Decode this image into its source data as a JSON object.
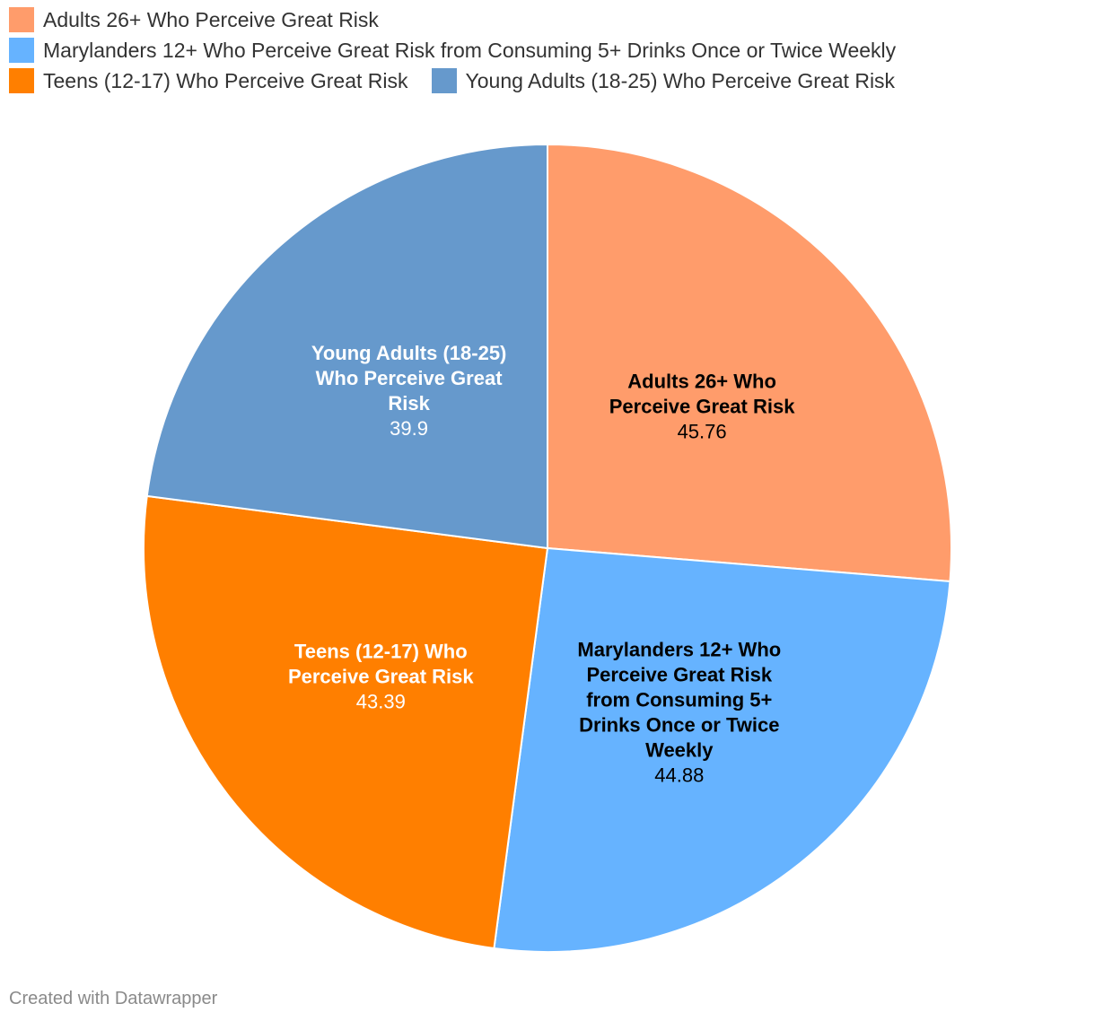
{
  "chart_data": {
    "type": "pie",
    "title": "",
    "legend_position": "top-left",
    "slices": [
      {
        "label": "Adults 26+ Who Perceive Great Risk",
        "value": 45.76,
        "value_label": "45.76",
        "color": "#ff9c6b",
        "text_color": "#000000",
        "label_lines": [
          "Adults 26+ Who",
          "Perceive Great Risk"
        ]
      },
      {
        "label": "Marylanders 12+ Who Perceive Great Risk from Consuming 5+ Drinks Once or Twice Weekly",
        "value": 44.88,
        "value_label": "44.88",
        "color": "#66b3ff",
        "text_color": "#000000",
        "label_lines": [
          "Marylanders 12+ Who",
          "Perceive Great Risk",
          "from Consuming 5+",
          "Drinks Once or Twice",
          "Weekly"
        ]
      },
      {
        "label": "Teens (12-17) Who Perceive Great Risk",
        "value": 43.39,
        "value_label": "43.39",
        "color": "#ff7f00",
        "text_color": "#ffffff",
        "label_lines": [
          "Teens (12-17) Who",
          "Perceive Great Risk"
        ]
      },
      {
        "label": "Young Adults (18-25) Who Perceive Great Risk",
        "value": 39.9,
        "value_label": "39.9",
        "color": "#6699cc",
        "text_color": "#ffffff",
        "label_lines": [
          "Young Adults (18-25)",
          "Who Perceive Great",
          "Risk"
        ]
      }
    ]
  },
  "legend": [
    {
      "label": "Adults 26+ Who Perceive Great Risk",
      "color": "#ff9c6b"
    },
    {
      "label": "Marylanders 12+ Who Perceive Great Risk from Consuming 5+ Drinks Once or Twice Weekly",
      "color": "#66b3ff"
    },
    {
      "label": "Teens (12-17) Who Perceive Great Risk",
      "color": "#ff7f00"
    },
    {
      "label": "Young Adults (18-25) Who Perceive Great Risk",
      "color": "#6699cc"
    }
  ],
  "footer": {
    "credit": "Created with Datawrapper"
  }
}
